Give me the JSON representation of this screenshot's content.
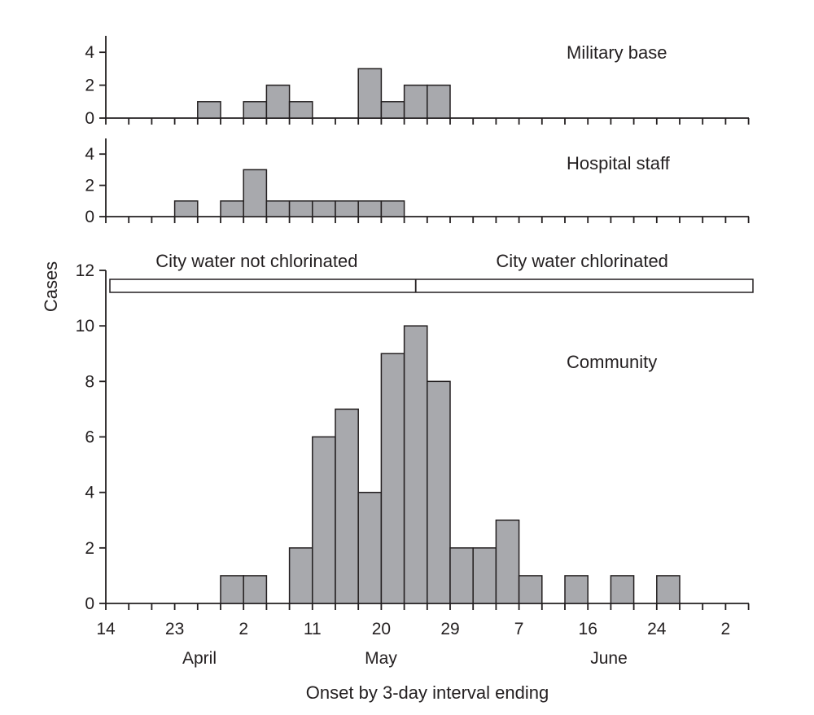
{
  "chart_data": {
    "type": "bar",
    "ylabel": "Cases",
    "xlabel": "Onset by 3-day interval ending",
    "x_tick_labels": [
      "14",
      "23",
      "2",
      "11",
      "20",
      "29",
      "7",
      "16",
      "24",
      "2"
    ],
    "month_labels": [
      "April",
      "May",
      "June"
    ],
    "bin_width_days": 3,
    "num_bins": 28,
    "panels": [
      {
        "name": "Military base",
        "ylim": [
          0,
          5
        ],
        "yticks": [
          0,
          2,
          4
        ],
        "values": [
          0,
          0,
          0,
          0,
          1,
          0,
          1,
          2,
          1,
          0,
          0,
          3,
          1,
          2,
          2,
          0,
          0,
          0,
          0,
          0,
          0,
          0,
          0,
          0,
          0,
          0,
          0,
          0
        ]
      },
      {
        "name": "Hospital staff",
        "ylim": [
          0,
          5
        ],
        "yticks": [
          0,
          2,
          4
        ],
        "values": [
          0,
          0,
          0,
          1,
          0,
          1,
          3,
          1,
          1,
          1,
          1,
          1,
          1,
          0,
          0,
          0,
          0,
          0,
          0,
          0,
          0,
          0,
          0,
          0,
          0,
          0,
          0,
          0
        ]
      },
      {
        "name": "Community",
        "ylim": [
          0,
          12
        ],
        "yticks": [
          0,
          2,
          4,
          6,
          8,
          10,
          12
        ],
        "values": [
          0,
          0,
          0,
          0,
          0,
          1,
          1,
          0,
          2,
          6,
          7,
          4,
          9,
          10,
          8,
          2,
          2,
          3,
          1,
          0,
          1,
          0,
          1,
          0,
          1,
          0,
          0,
          0
        ]
      }
    ],
    "periods": [
      {
        "label": "City water not chlorinated",
        "bins": [
          0,
          13.5
        ]
      },
      {
        "label": "City water chlorinated",
        "bins": [
          13.5,
          28
        ]
      }
    ]
  }
}
